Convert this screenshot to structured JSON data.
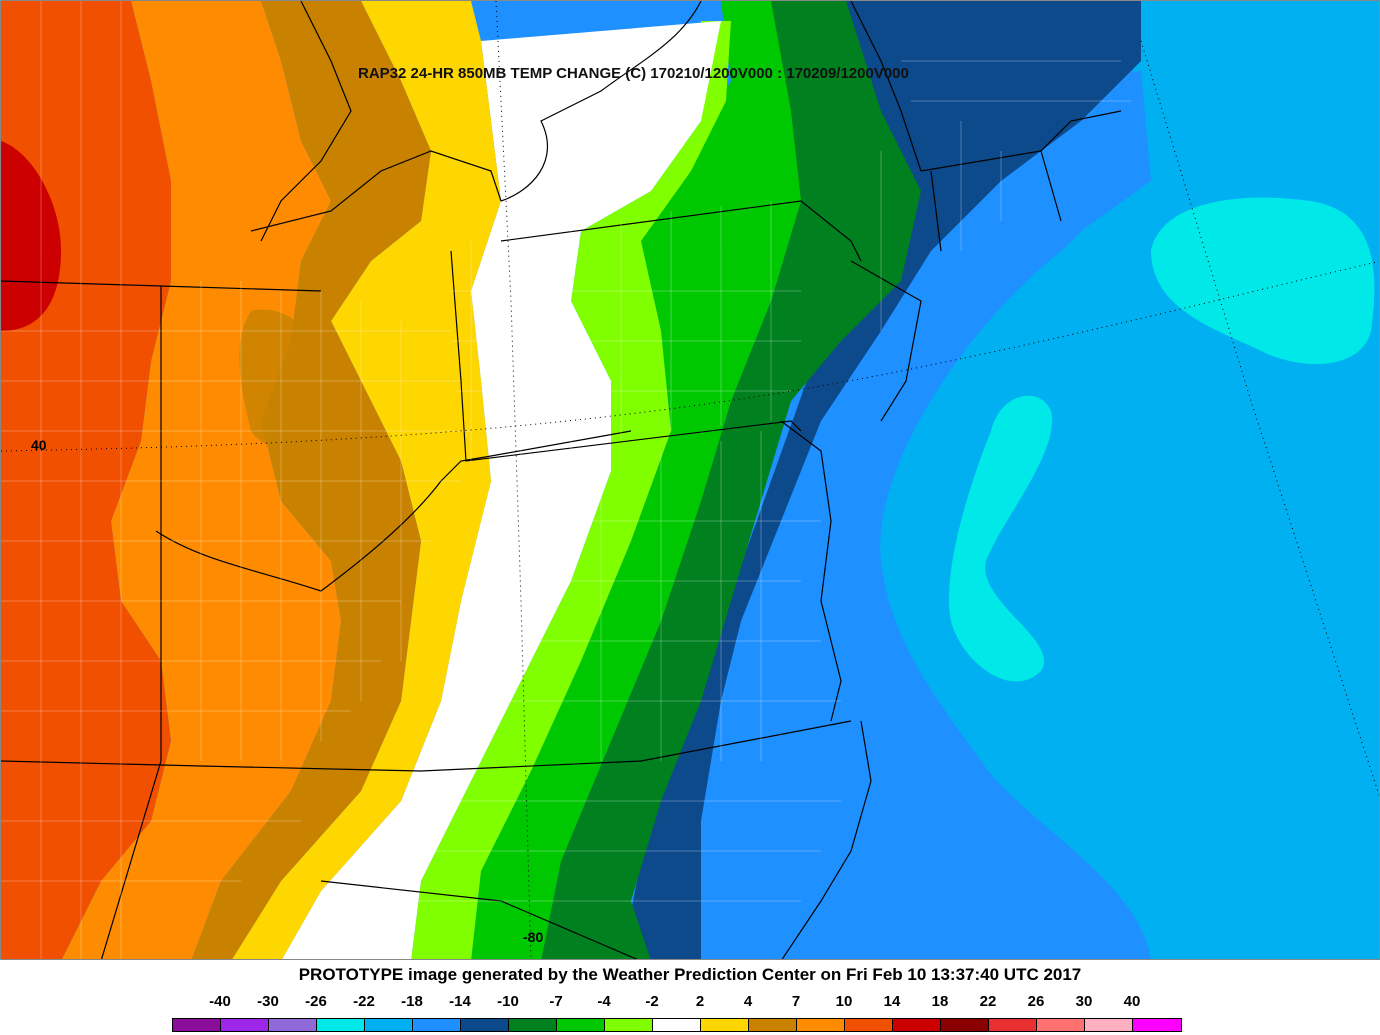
{
  "map": {
    "title": "RAP32 24-HR 850MB TEMP CHANGE (C) 170210/1200V000 : 170209/1200V000",
    "latitude_label": "40",
    "longitude_label": "-80"
  },
  "footer": {
    "credit": "PROTOTYPE image generated by the Weather Prediction Center on Fri Feb 10 13:37:40 UTC 2017"
  },
  "legend": {
    "labels": [
      "-40",
      "-30",
      "-26",
      "-22",
      "-18",
      "-14",
      "-10",
      "-7",
      "-4",
      "-2",
      "2",
      "4",
      "7",
      "10",
      "14",
      "18",
      "22",
      "26",
      "30",
      "40"
    ],
    "colors": [
      "#8b0e9a",
      "#9c27e8",
      "#8f6ad8",
      "#00e8e8",
      "#00b0f0",
      "#1e90ff",
      "#0d4a8c",
      "#00801e",
      "#00c800",
      "#80ff00",
      "#ffffff",
      "#ffd700",
      "#c88200",
      "#ff8c00",
      "#f05000",
      "#cc0000",
      "#8b0000",
      "#e83030",
      "#ff7070",
      "#ffb0c0",
      "#ff00ff"
    ]
  }
}
